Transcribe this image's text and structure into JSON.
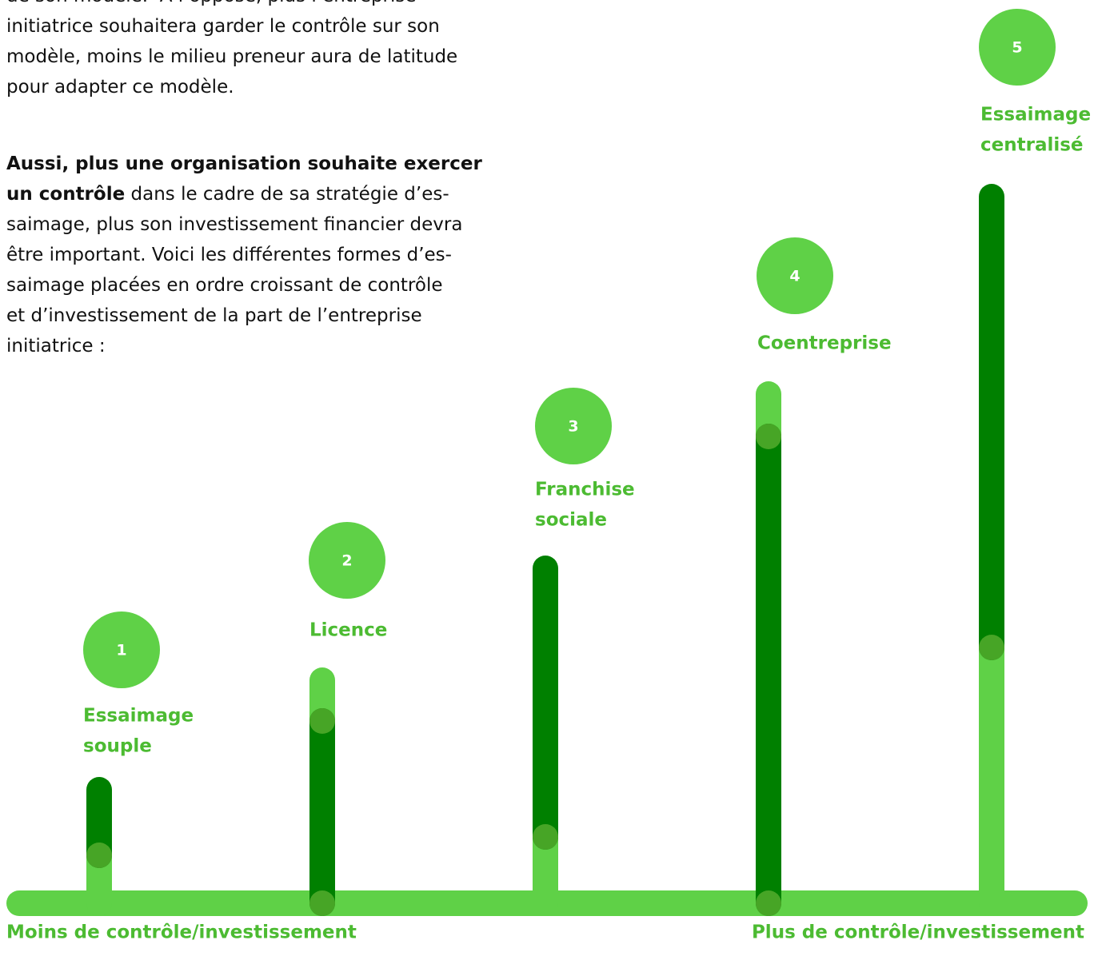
{
  "intro": {
    "lines": [
      "de son modèle.  À l’opposé, plus l’entreprise",
      "initiatrice souhaitera garder le contrôle sur son",
      "modèle, moins le milieu preneur aura de latitude",
      "pour adapter ce modèle."
    ]
  },
  "paragraph": {
    "bold_lines": [
      "Aussi, plus une organisation souhaite exercer",
      "un contrôle"
    ],
    "lines": [
      " dans le cadre de sa stratégie d’es-",
      "saimage, plus son investissement financier devra",
      "être important. Voici les différentes formes d’es-",
      "saimage placées en ordre croissant de contrôle",
      "et d’investissement de la part de l’entreprise",
      "initiatrice :"
    ]
  },
  "steps": [
    {
      "number": "1",
      "label": [
        "Essaimage",
        "souple"
      ]
    },
    {
      "number": "2",
      "label": [
        "Licence"
      ]
    },
    {
      "number": "3",
      "label": [
        "Franchise",
        "sociale"
      ]
    },
    {
      "number": "4",
      "label": [
        "Coentreprise"
      ]
    },
    {
      "number": "5",
      "label": [
        "Essaimage",
        "centralisé"
      ]
    }
  ],
  "axis": {
    "left": "Moins de contrôle/investissement",
    "right": "Plus de contrôle/investissement"
  }
}
